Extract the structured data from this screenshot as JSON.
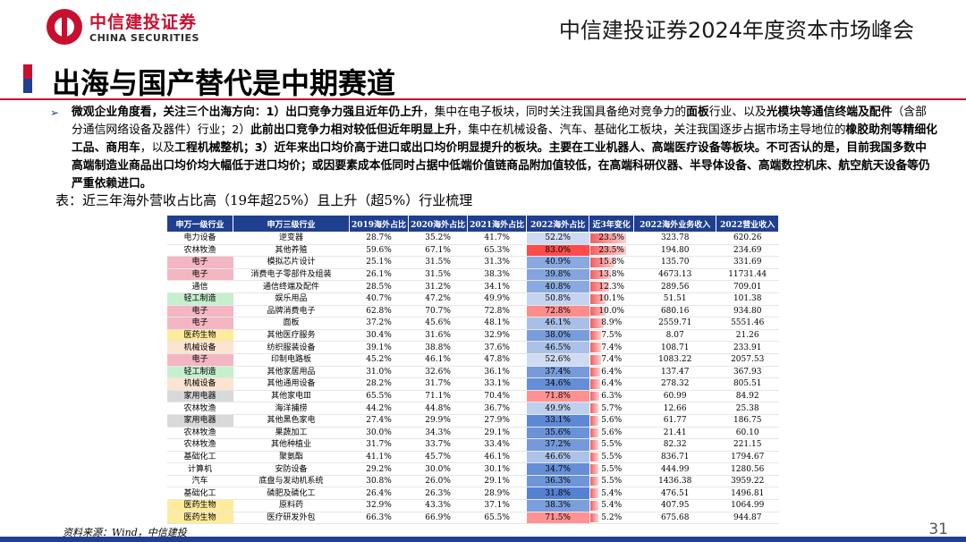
{
  "header": {
    "logo_cn": "中信建投证券",
    "logo_en": "CHINA SECURITIES",
    "conference": "中信建投证券2024年度资本市场峰会"
  },
  "page_title": "出海与国产替代是中期赛道",
  "bullet": [
    {
      "t": "微观企业角度看，关注三个出海方向：1）出口竞争力强且近年仍上升",
      "b": true
    },
    {
      "t": "，集中在电子板块，同时关注我国具备绝对竞争力的",
      "b": false
    },
    {
      "t": "面板",
      "b": true
    },
    {
      "t": "行业、以及",
      "b": false
    },
    {
      "t": "光模块等通信终端及配件",
      "b": true
    },
    {
      "t": "（含部分通信网络设备及器件）行业；2）",
      "b": false
    },
    {
      "t": "此前出口竞争力相对较低但近年明显上升",
      "b": true
    },
    {
      "t": "，集中在机械设备、汽车、基础化工板块，关注我国逐步占据市场主导地位的",
      "b": false
    },
    {
      "t": "橡胶助剂等精细化工品、商用车",
      "b": true
    },
    {
      "t": "，以及",
      "b": false
    },
    {
      "t": "工程机械整机",
      "b": true
    },
    {
      "t": "；3）近年来出口均价高于进口或出口均价明显提升的板块。主要在工业机器人、高端医疗设备等板块。不可否认的是，目前我国多数中高端制造业商品出口均价均大幅低于进口均价；或因要素成本低同时占据中低端价值链商品附加值较低，在高端科研仪器、半导体设备、高端数控机床、航空航天设备等仍严重依赖进口。",
      "b": true
    }
  ],
  "caption": "表：近三年海外营收占比高（19年超25%）且上升（超5%）行业梳理",
  "table": {
    "headers": [
      "申万一级行业",
      "申万三级行业",
      "2019海外占比",
      "2020海外占比",
      "2021海外占比",
      "2022海外占比",
      "近3年变化",
      "2022海外业务收入",
      "2022营业收入"
    ],
    "rows": [
      [
        "电力设备",
        "逆变器",
        "28.7%",
        "35.2%",
        "41.7%",
        "52.2%",
        "23.5%",
        "323.78",
        "620.26"
      ],
      [
        "农林牧渔",
        "其他养殖",
        "59.6%",
        "67.1%",
        "65.3%",
        "83.0%",
        "23.5%",
        "194.80",
        "234.69"
      ],
      [
        "电子",
        "模拟芯片设计",
        "25.1%",
        "31.5%",
        "31.3%",
        "40.9%",
        "15.8%",
        "135.70",
        "331.69"
      ],
      [
        "电子",
        "消费电子零部件及组装",
        "26.1%",
        "31.5%",
        "38.3%",
        "39.8%",
        "13.8%",
        "4673.13",
        "11731.44"
      ],
      [
        "通信",
        "通信终端及配件",
        "28.5%",
        "31.2%",
        "34.1%",
        "40.8%",
        "12.3%",
        "289.56",
        "709.01"
      ],
      [
        "轻工制造",
        "娱乐用品",
        "40.7%",
        "47.2%",
        "49.9%",
        "50.8%",
        "10.1%",
        "51.51",
        "101.38"
      ],
      [
        "电子",
        "品牌消费电子",
        "62.8%",
        "70.7%",
        "72.8%",
        "72.8%",
        "10.0%",
        "680.16",
        "934.80"
      ],
      [
        "电子",
        "面板",
        "37.2%",
        "45.6%",
        "48.1%",
        "46.1%",
        "8.9%",
        "2559.71",
        "5551.46"
      ],
      [
        "医药生物",
        "其他医疗服务",
        "30.4%",
        "31.6%",
        "32.9%",
        "38.0%",
        "7.5%",
        "8.07",
        "21.26"
      ],
      [
        "机械设备",
        "纺织服装设备",
        "39.1%",
        "38.8%",
        "37.6%",
        "46.5%",
        "7.4%",
        "108.71",
        "233.91"
      ],
      [
        "电子",
        "印制电路板",
        "45.2%",
        "46.1%",
        "47.8%",
        "52.6%",
        "7.4%",
        "1083.22",
        "2057.53"
      ],
      [
        "轻工制造",
        "其他家居用品",
        "31.0%",
        "32.6%",
        "36.1%",
        "37.4%",
        "6.4%",
        "137.47",
        "367.93"
      ],
      [
        "机械设备",
        "其他通用设备",
        "28.2%",
        "31.7%",
        "33.1%",
        "34.6%",
        "6.4%",
        "278.32",
        "805.51"
      ],
      [
        "家用电器",
        "其他家电Ⅲ",
        "65.5%",
        "71.1%",
        "70.4%",
        "71.8%",
        "6.3%",
        "60.99",
        "84.92"
      ],
      [
        "农林牧渔",
        "海洋捕捞",
        "44.2%",
        "44.8%",
        "36.7%",
        "49.9%",
        "5.7%",
        "12.66",
        "25.38"
      ],
      [
        "家用电器",
        "其他黑色家电",
        "27.4%",
        "29.9%",
        "27.9%",
        "33.1%",
        "5.6%",
        "61.77",
        "186.75"
      ],
      [
        "农林牧渔",
        "果蔬加工",
        "30.0%",
        "34.3%",
        "29.1%",
        "35.6%",
        "5.6%",
        "21.41",
        "60.10"
      ],
      [
        "农林牧渔",
        "其他种植业",
        "31.7%",
        "33.7%",
        "33.4%",
        "37.2%",
        "5.5%",
        "82.32",
        "221.15"
      ],
      [
        "基础化工",
        "聚氨酯",
        "41.1%",
        "45.7%",
        "46.1%",
        "46.6%",
        "5.5%",
        "836.71",
        "1794.67"
      ],
      [
        "计算机",
        "安防设备",
        "29.2%",
        "30.0%",
        "30.1%",
        "34.7%",
        "5.5%",
        "444.99",
        "1280.56"
      ],
      [
        "汽车",
        "底盘与发动机系统",
        "30.8%",
        "26.0%",
        "29.1%",
        "36.3%",
        "5.5%",
        "1436.38",
        "3959.22"
      ],
      [
        "基础化工",
        "磷肥及磷化工",
        "26.4%",
        "26.3%",
        "28.9%",
        "31.8%",
        "5.4%",
        "476.51",
        "1496.81"
      ],
      [
        "医药生物",
        "原料药",
        "32.9%",
        "43.3%",
        "37.1%",
        "38.3%",
        "5.4%",
        "407.95",
        "1064.99"
      ],
      [
        "医药生物",
        "医疗研发外包",
        "66.3%",
        "66.9%",
        "65.5%",
        "71.5%",
        "5.2%",
        "675.68",
        "944.87"
      ]
    ],
    "industry_colors": {
      "电子": "#f4b6c2",
      "轻工制造": "#c6efce",
      "医药生物": "#ffeb9c",
      "机械设备": "#fde4d0",
      "家用电器": "#d9d9d9"
    }
  },
  "footer": {
    "source": "资料来源：Wind，中信建投",
    "page": "31"
  },
  "colors": {
    "brand_red": "#c8102e",
    "brand_blue": "#1f3f8f"
  }
}
